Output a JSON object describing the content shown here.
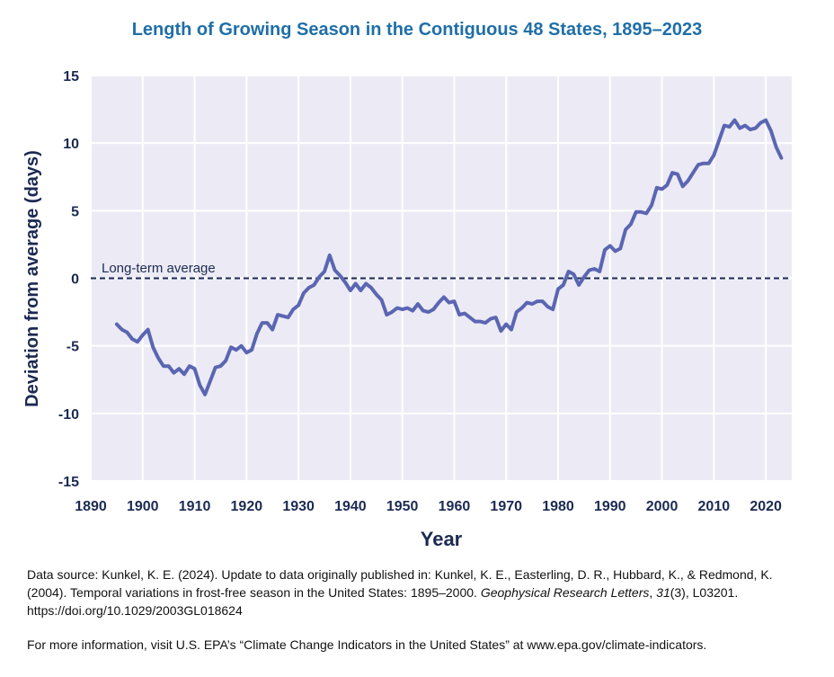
{
  "chart_data": {
    "type": "line",
    "title": "Length of Growing Season in the Contiguous 48 States, 1895–2023",
    "xlabel": "Year",
    "ylabel": "Deviation from average (days)",
    "xlim": [
      1890,
      2025
    ],
    "ylim": [
      -15,
      15
    ],
    "x_ticks": [
      "1890",
      "1900",
      "1910",
      "1920",
      "1930",
      "1940",
      "1950",
      "1960",
      "1970",
      "1980",
      "1990",
      "2000",
      "2010",
      "2020"
    ],
    "y_ticks": [
      "15",
      "10",
      "5",
      "0",
      "-5",
      "-10",
      "-15"
    ],
    "grid": true,
    "reference_line": {
      "label": "Long-term average",
      "y": 0
    },
    "series": [
      {
        "color": "#5b66b2",
        "x": [
          1895,
          1896,
          1897,
          1898,
          1899,
          1900,
          1901,
          1902,
          1903,
          1904,
          1905,
          1906,
          1907,
          1908,
          1909,
          1910,
          1911,
          1912,
          1913,
          1914,
          1915,
          1916,
          1917,
          1918,
          1919,
          1920,
          1921,
          1922,
          1923,
          1924,
          1925,
          1926,
          1927,
          1928,
          1929,
          1930,
          1931,
          1932,
          1933,
          1934,
          1935,
          1936,
          1937,
          1938,
          1939,
          1940,
          1941,
          1942,
          1943,
          1944,
          1945,
          1946,
          1947,
          1948,
          1949,
          1950,
          1951,
          1952,
          1953,
          1954,
          1955,
          1956,
          1957,
          1958,
          1959,
          1960,
          1961,
          1962,
          1963,
          1964,
          1965,
          1966,
          1967,
          1968,
          1969,
          1970,
          1971,
          1972,
          1973,
          1974,
          1975,
          1976,
          1977,
          1978,
          1979,
          1980,
          1981,
          1982,
          1983,
          1984,
          1985,
          1986,
          1987,
          1988,
          1989,
          1990,
          1991,
          1992,
          1993,
          1994,
          1995,
          1996,
          1997,
          1998,
          1999,
          2000,
          2001,
          2002,
          2003,
          2004,
          2005,
          2006,
          2007,
          2008,
          2009,
          2010,
          2011,
          2012,
          2013,
          2014,
          2015,
          2016,
          2017,
          2018,
          2019,
          2020,
          2021,
          2022,
          2023
        ],
        "values": [
          -3.4,
          -3.8,
          -4.0,
          -4.5,
          -4.7,
          -4.2,
          -3.8,
          -5.1,
          -5.9,
          -6.5,
          -6.5,
          -7.0,
          -6.7,
          -7.1,
          -6.5,
          -6.7,
          -7.9,
          -8.6,
          -7.6,
          -6.6,
          -6.5,
          -6.1,
          -5.1,
          -5.3,
          -5.0,
          -5.5,
          -5.3,
          -4.1,
          -3.3,
          -3.3,
          -3.8,
          -2.7,
          -2.8,
          -2.9,
          -2.3,
          -2.0,
          -1.1,
          -0.7,
          -0.5,
          0.1,
          0.5,
          1.7,
          0.6,
          0.2,
          -0.3,
          -0.9,
          -0.4,
          -0.9,
          -0.4,
          -0.7,
          -1.2,
          -1.6,
          -2.7,
          -2.5,
          -2.2,
          -2.3,
          -2.2,
          -2.4,
          -1.9,
          -2.4,
          -2.5,
          -2.3,
          -1.8,
          -1.4,
          -1.8,
          -1.7,
          -2.7,
          -2.6,
          -2.9,
          -3.2,
          -3.2,
          -3.3,
          -3.0,
          -2.9,
          -3.9,
          -3.4,
          -3.8,
          -2.5,
          -2.2,
          -1.8,
          -1.9,
          -1.7,
          -1.7,
          -2.1,
          -2.3,
          -0.8,
          -0.5,
          0.5,
          0.3,
          -0.5,
          0.1,
          0.6,
          0.7,
          0.5,
          2.1,
          2.4,
          2.0,
          2.2,
          3.6,
          4.0,
          4.9,
          4.9,
          4.8,
          5.4,
          6.7,
          6.6,
          6.9,
          7.8,
          7.7,
          6.8,
          7.2,
          7.8,
          8.4,
          8.5,
          8.5,
          9.1,
          10.2,
          11.3,
          11.2,
          11.7,
          11.1,
          11.3,
          11.0,
          11.1,
          11.5,
          11.7,
          10.9,
          9.7,
          8.9
        ]
      }
    ]
  },
  "footer": {
    "source_prefix": "Data source: Kunkel, K. E. (2024). Update to data originally published in: Kunkel, K. E., Easterling, D. R., Hubbard, K., & Redmond, K. (2004). Temporal variations in frost-free season in the United States: 1895–2000. ",
    "journal": "Geophysical Research Letters",
    "source_mid": ", ",
    "volume": "31",
    "source_suffix": "(3), L03201. https://doi.org/10.1029/2003GL018624",
    "more_info": "For more information, visit U.S. EPA’s “Climate Change Indicators in the United States” at www.epa.gov/climate-indicators."
  }
}
